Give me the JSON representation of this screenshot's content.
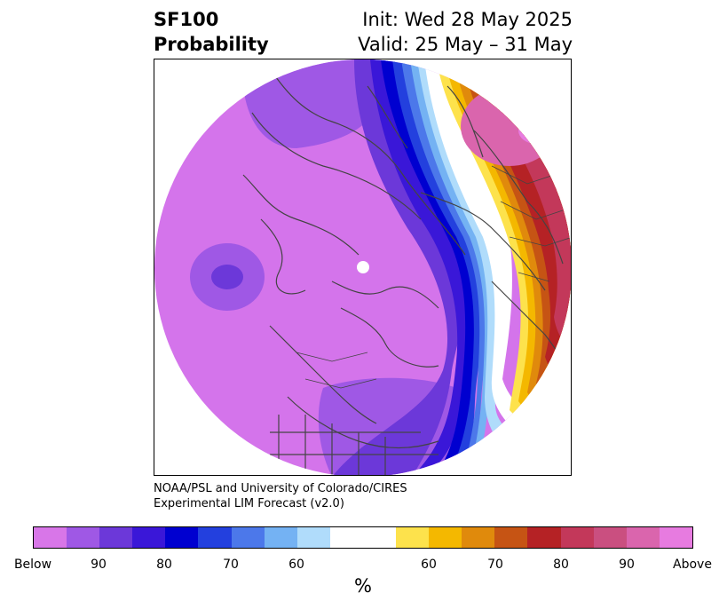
{
  "header": {
    "variable": "SF100",
    "product": "Probability",
    "init_text": "Init: Wed 28 May 2025",
    "valid_text": "Valid: 25 May – 31 May"
  },
  "credit": {
    "line1": "NOAA/PSL and University of Colorado/CIRES",
    "line2": "Experimental LIM Forecast (v2.0)"
  },
  "colorbar": {
    "colors": [
      "#d876e8",
      "#9f58e5",
      "#6c38d9",
      "#3a17d8",
      "#0000d0",
      "#2340de",
      "#4c78ea",
      "#74b2f3",
      "#b0dcfb",
      "#ffffff",
      "#ffffff",
      "#fde24c",
      "#f4b800",
      "#e08a0c",
      "#c65414",
      "#b52225",
      "#c3385a",
      "#ca4f80",
      "#da65ad",
      "#e77be0"
    ],
    "ticks": {
      "below": "Below",
      "b90": "90",
      "b80": "80",
      "b70": "70",
      "b60": "60",
      "a60": "60",
      "a70": "70",
      "a80": "80",
      "a90": "90",
      "above": "Above"
    },
    "unit": "%"
  },
  "map": {
    "projection": "north-polar-stereographic",
    "below_color": "#d474eb",
    "above_color": "#c64a82"
  }
}
